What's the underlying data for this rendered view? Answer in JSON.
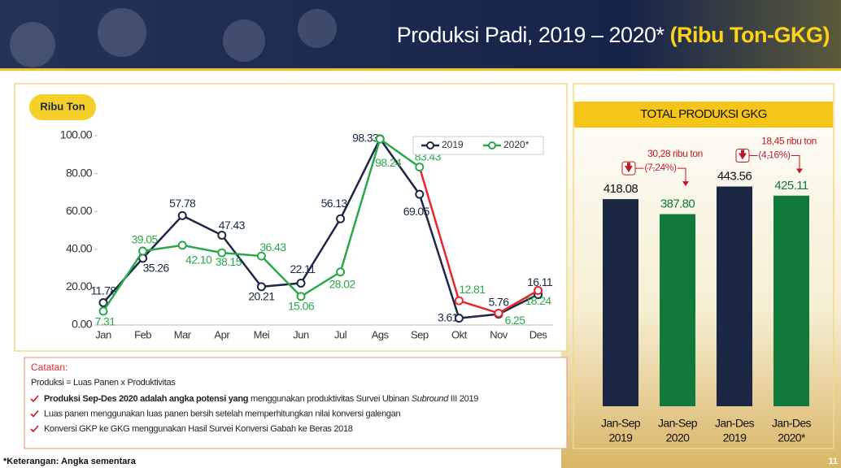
{
  "header": {
    "title": "Produksi Padi, 2019 – 2020*",
    "unit": "(Ribu Ton-GKG)"
  },
  "chart_data": [
    {
      "type": "line",
      "axis_badge": "Ribu Ton",
      "categories": [
        "Jan",
        "Feb",
        "Mar",
        "Apr",
        "Mei",
        "Jun",
        "Jul",
        "Ags",
        "Sep",
        "Okt",
        "Nov",
        "Des"
      ],
      "series": [
        {
          "name": "2019",
          "color": "#1b2744",
          "values": [
            11.78,
            35.26,
            57.78,
            47.43,
            20.21,
            22.11,
            56.13,
            98.33,
            69.05,
            3.61,
            5.76,
            16.11
          ],
          "value_labels": [
            "11.78",
            "35.26",
            "57.78",
            "47.43",
            "20.21",
            "22.11",
            "56.13",
            "98.33",
            "69.05",
            "3.61",
            "5.76",
            "16.11"
          ]
        },
        {
          "name": "2020*",
          "color": "#2aa84a",
          "projection_color": "#e8262b",
          "projection_start": "Sep",
          "values": [
            7.31,
            39.05,
            42.1,
            38.15,
            36.43,
            15.06,
            28.02,
            98.24,
            83.43,
            12.81,
            6.25,
            18.24
          ],
          "value_labels": [
            "7.31",
            "39.05",
            "42.10",
            "38.15",
            "36.43",
            "15.06",
            "28.02",
            "98.24",
            "83.43",
            "12.81",
            "6.25",
            "18.24"
          ]
        }
      ],
      "ylim": [
        0,
        100
      ],
      "yticks": [
        {
          "value": 0,
          "label": "0.00"
        },
        {
          "value": 20,
          "label": "20.00"
        },
        {
          "value": 40,
          "label": "40.00"
        },
        {
          "value": 60,
          "label": "60.00"
        },
        {
          "value": 80,
          "label": "80.00"
        },
        {
          "value": 100,
          "label": "100.00"
        }
      ],
      "grid": false,
      "legend": "top-right"
    },
    {
      "type": "bar",
      "title": "TOTAL PRODUKSI GKG",
      "categories": [
        [
          "Jan-Sep",
          "2019"
        ],
        [
          "Jan-Sep",
          "2020"
        ],
        [
          "Jan-Des",
          "2019"
        ],
        [
          "Jan-Des",
          "2020*"
        ]
      ],
      "values": [
        418.08,
        387.8,
        443.56,
        425.11
      ],
      "value_labels": [
        "418.08",
        "387.80",
        "443.56",
        "425.11"
      ],
      "colors": [
        "#1b2744",
        "#0f7a3a",
        "#1b2744",
        "#0f7a3a"
      ],
      "ylim": [
        0,
        820
      ],
      "annotations": [
        {
          "text": "30,28 ribu ton",
          "change": "(7,24%)"
        },
        {
          "text": "18,45 ribu ton",
          "change": "(4,16%)"
        }
      ]
    }
  ],
  "notes": {
    "heading": "Catatan:",
    "formula": "Produksi = Luas Panen x Produktivitas",
    "items": [
      [
        {
          "text": "Produksi Sep-Des 2020 adalah angka potensi yang",
          "style": "bold"
        },
        {
          "text": " menggunakan produktivitas Survei Ubinan "
        },
        {
          "text": "Subround",
          "style": "italic"
        },
        {
          "text": " III 2019"
        }
      ],
      [
        {
          "text": "Luas panen menggunakan luas panen bersih setelah memperhitungkan nilai konversi galengan"
        }
      ],
      [
        {
          "text": "Konversi GKP ke GKG menggunakan Hasil Survei Konversi Gabah ke Beras 2018"
        }
      ]
    ]
  },
  "footer": {
    "note": "*Keterangan: Angka sementara",
    "page": "11"
  }
}
